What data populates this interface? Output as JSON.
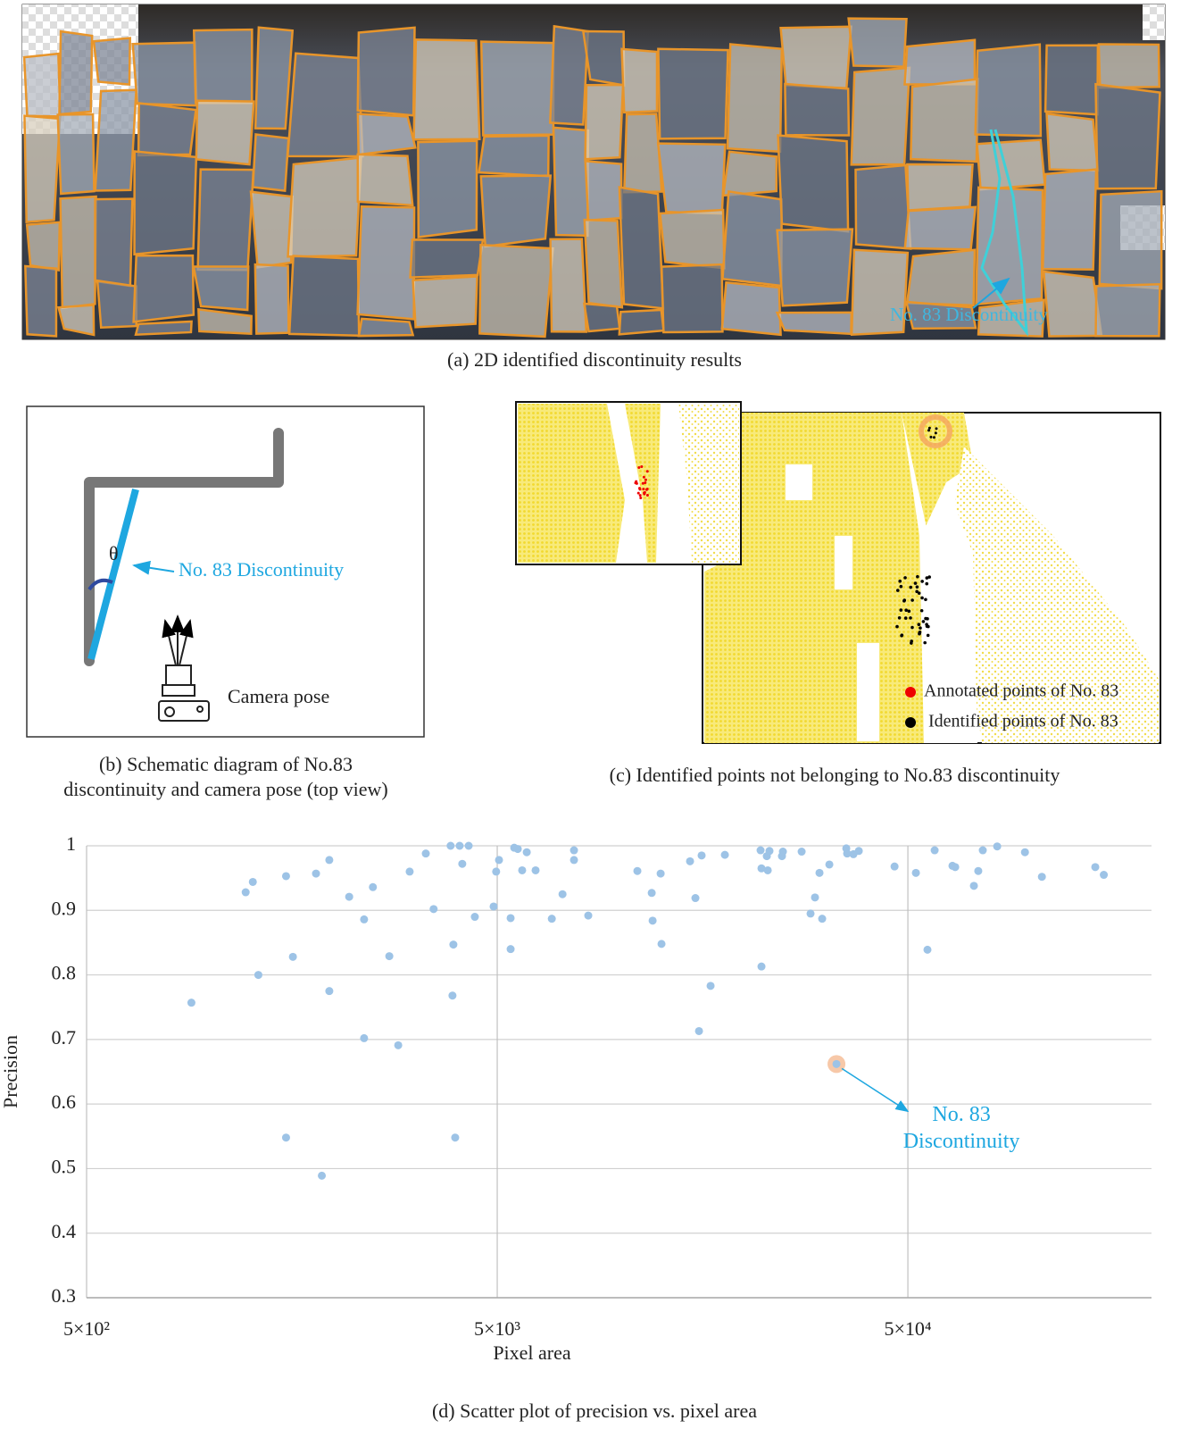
{
  "panel_a": {
    "label": "No. 83 Discontinuity",
    "caption": "(a) 2D identified discontinuity results"
  },
  "panel_b": {
    "theta": "θ",
    "label": "No. 83 Discontinuity",
    "camera": "Camera pose",
    "caption": [
      "(b) Schematic diagram of  No.83",
      "discontinuity and camera pose (top view)"
    ]
  },
  "panel_c": {
    "legend": [
      "Annotated points of No. 83",
      "Identified points of No. 83"
    ],
    "caption": "(c) Identified points not belonging to No.83 discontinuity"
  },
  "chart_data": {
    "type": "scatter",
    "x_label": "Pixel area",
    "y_label": "Precision",
    "log_x": true,
    "grid": true,
    "color": "#9dc3e6",
    "xlim": [
      500,
      196000
    ],
    "ylim": [
      0.3,
      1
    ],
    "xticks": [
      {
        "value": 500,
        "label": "5×10²"
      },
      {
        "value": 5000,
        "label": "5×10³"
      },
      {
        "value": 50000,
        "label": "5×10⁴"
      }
    ],
    "yticks": [
      0.3,
      0.4,
      0.5,
      0.6,
      0.7,
      0.8,
      0.9,
      1
    ],
    "x": [
      900,
      1220,
      1270,
      1310,
      1530,
      1530,
      1590,
      1810,
      1870,
      1950,
      1950,
      2180,
      2370,
      2370,
      2490,
      2730,
      2870,
      3060,
      3350,
      3500,
      3850,
      3910,
      3890,
      3950,
      4050,
      4110,
      4260,
      4410,
      4900,
      4970,
      5050,
      5390,
      5390,
      5500,
      5610,
      5750,
      5900,
      6200,
      6790,
      7210,
      7690,
      7690,
      8330,
      10970,
      11890,
      11950,
      12500,
      12560,
      14740,
      15190,
      15500,
      15730,
      16540,
      17920,
      21890,
      22000,
      22000,
      22670,
      22790,
      23010,
      24680,
      24810,
      27560,
      28970,
      29700,
      30460,
      30920,
      32190,
      35400,
      35570,
      36850,
      37970,
      46400,
      52300,
      55800,
      58100,
      64200,
      65200,
      72400,
      74200,
      76100,
      82500,
      96400,
      106000,
      143000,
      150000
    ],
    "y": [
      0.757,
      0.928,
      0.944,
      0.8,
      0.953,
      0.548,
      0.828,
      0.957,
      0.489,
      0.978,
      0.775,
      0.921,
      0.886,
      0.702,
      0.936,
      0.829,
      0.691,
      0.96,
      0.988,
      0.902,
      1,
      0.847,
      0.768,
      0.548,
      1,
      0.972,
      1,
      0.89,
      0.906,
      0.96,
      0.978,
      0.888,
      0.84,
      0.997,
      0.995,
      0.962,
      0.99,
      0.962,
      0.887,
      0.925,
      0.993,
      0.978,
      0.892,
      0.961,
      0.927,
      0.884,
      0.957,
      0.848,
      0.976,
      0.919,
      0.713,
      0.985,
      0.783,
      0.986,
      0.993,
      0.965,
      0.813,
      0.984,
      0.962,
      0.992,
      0.984,
      0.991,
      0.991,
      0.895,
      0.92,
      0.958,
      0.887,
      0.971,
      0.996,
      0.988,
      0.987,
      0.992,
      0.968,
      0.958,
      0.839,
      0.993,
      0.969,
      0.967,
      0.938,
      0.961,
      0.993,
      0.999,
      0.99,
      0.952,
      0.967,
      0.955
    ],
    "annotation": {
      "x": 33500,
      "y": 0.662,
      "text": [
        "No. 83",
        "Discontinuity"
      ],
      "color": "#1ea7e0"
    },
    "caption": "(d) Scatter plot of precision vs. pixel area"
  }
}
